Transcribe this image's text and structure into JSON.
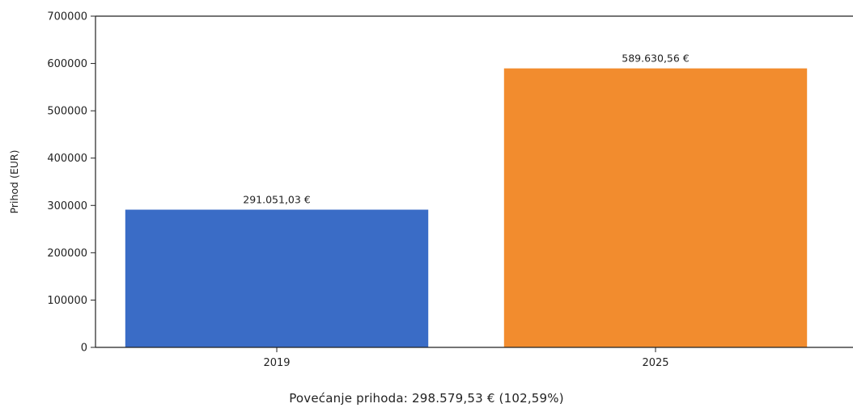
{
  "chart_data": {
    "type": "bar",
    "title": "",
    "categories": [
      "2019",
      "2025"
    ],
    "values": [
      291051.03,
      589630.56
    ],
    "value_labels": [
      "291.051,03 €",
      "589.630,56 €"
    ],
    "colors": [
      "#3a6cc6",
      "#f28c2e"
    ],
    "xlabel": "",
    "ylabel": "Prihod (EUR)",
    "ylim": [
      0,
      700000
    ],
    "yticks": [
      0,
      100000,
      200000,
      300000,
      400000,
      500000,
      600000,
      700000
    ],
    "ytick_labels": [
      "0",
      "100000",
      "200000",
      "300000",
      "400000",
      "500000",
      "600000",
      "700000"
    ],
    "grid": false,
    "legend": false,
    "footer_note": "Povećanje prihoda: 298.579,53 € (102,59%)"
  }
}
